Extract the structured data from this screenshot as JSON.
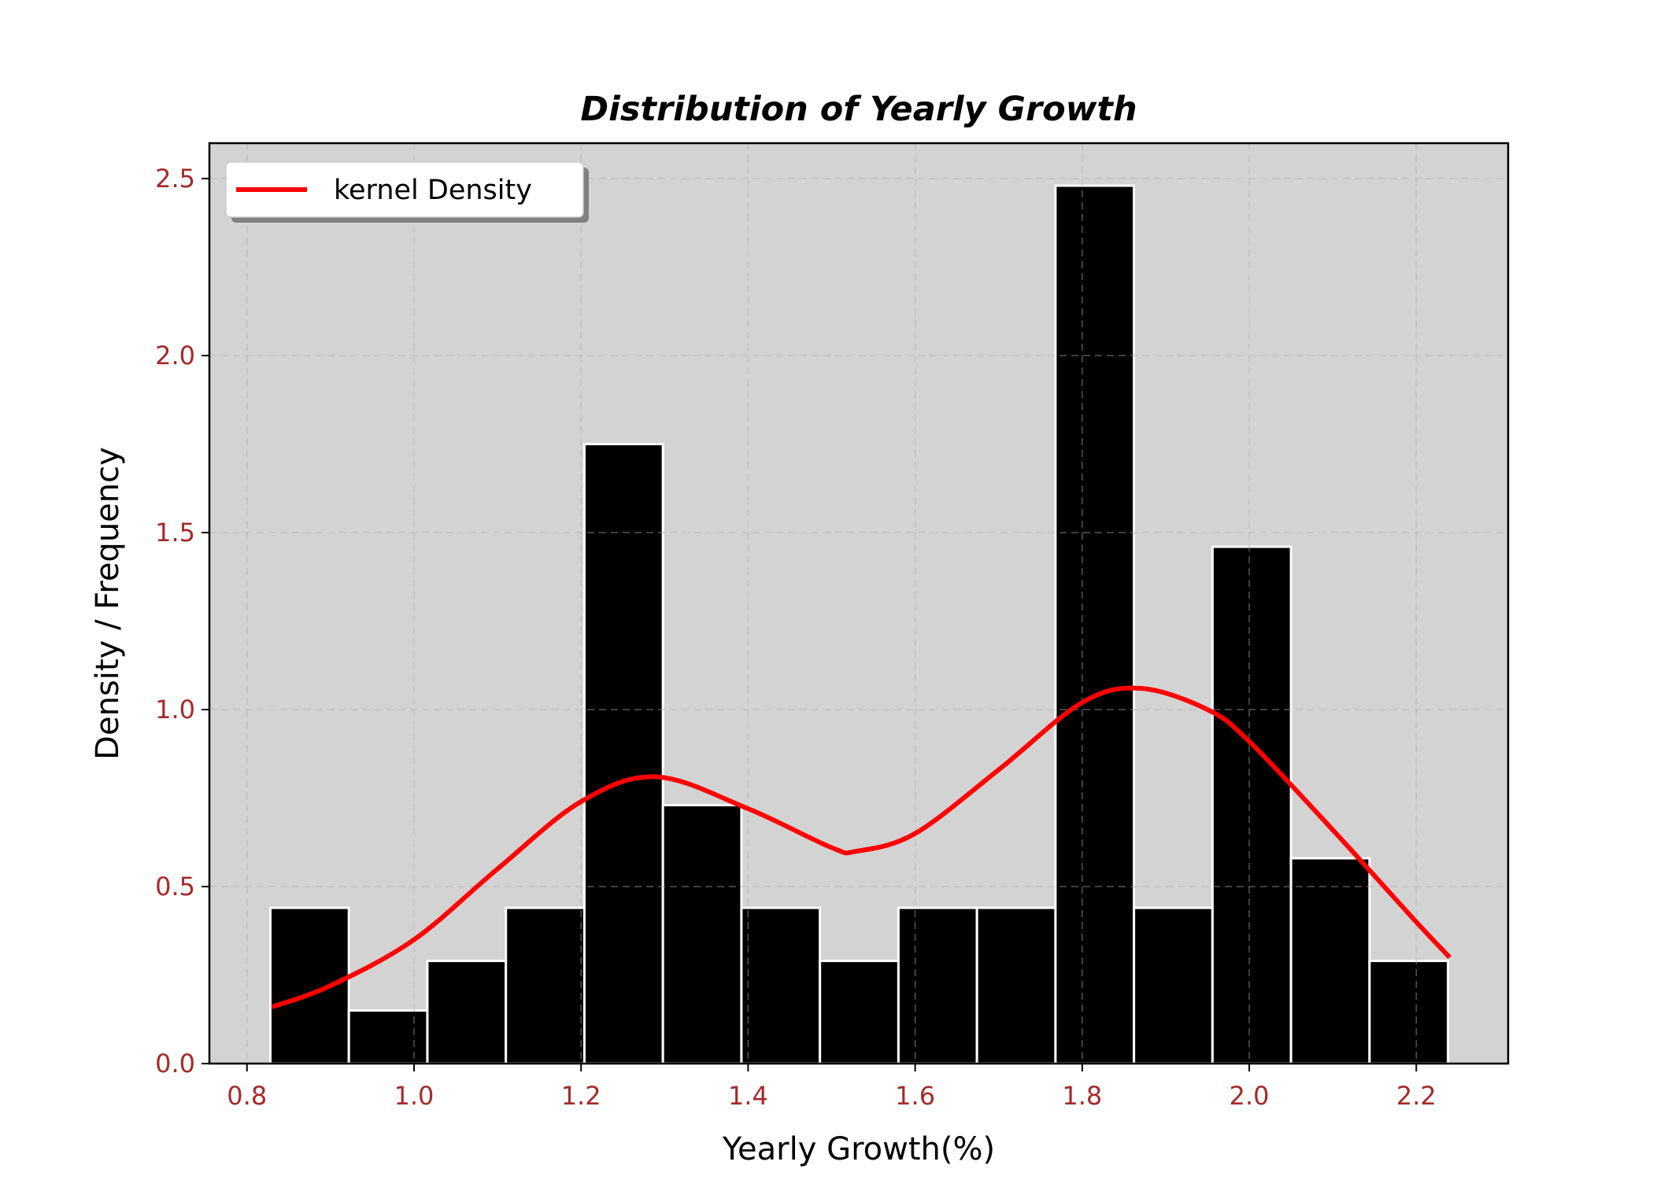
{
  "chart_data": {
    "type": "bar",
    "title": "Distribution of Yearly Growth",
    "xlabel": "Yearly Growth(%)",
    "ylabel": "Density / Frequency",
    "xlim": [
      0.755,
      2.31
    ],
    "ylim": [
      0,
      2.6
    ],
    "x_ticks": [
      0.8,
      1.0,
      1.2,
      1.4,
      1.6,
      1.8,
      2.0,
      2.2
    ],
    "x_tick_labels": [
      "0.8",
      "1.0",
      "1.2",
      "1.4",
      "1.6",
      "1.8",
      "2.0",
      "2.2"
    ],
    "y_ticks": [
      0.0,
      0.5,
      1.0,
      1.5,
      2.0,
      2.5
    ],
    "y_tick_labels": [
      "0.0",
      "0.5",
      "1.0",
      "1.5",
      "2.0",
      "2.5"
    ],
    "grid": true,
    "background_color": "#d3d3d3",
    "histogram": {
      "bin_edges": [
        0.828,
        0.922,
        1.016,
        1.11,
        1.204,
        1.298,
        1.392,
        1.486,
        1.58,
        1.674,
        1.768,
        1.862,
        1.956,
        2.05,
        2.144,
        2.238
      ],
      "values": [
        0.44,
        0.15,
        0.29,
        0.44,
        1.75,
        0.73,
        0.44,
        0.29,
        0.44,
        0.44,
        2.48,
        0.44,
        1.46,
        0.58,
        0.29
      ],
      "bar_color": "#000000",
      "edge_color": "#ffffff"
    },
    "series": [
      {
        "name": "kernel Density",
        "type": "line",
        "color": "#ff0000",
        "x": [
          0.83,
          0.9,
          1.0,
          1.1,
          1.2,
          1.29,
          1.4,
          1.5,
          1.53,
          1.6,
          1.7,
          1.8,
          1.87,
          1.95,
          2.0,
          2.1,
          2.2,
          2.24
        ],
        "y": [
          0.16,
          0.22,
          0.35,
          0.55,
          0.74,
          0.81,
          0.72,
          0.61,
          0.6,
          0.65,
          0.83,
          1.02,
          1.06,
          1.0,
          0.91,
          0.66,
          0.4,
          0.3
        ]
      }
    ],
    "legend": {
      "placement": "top-left",
      "entries": [
        "kernel Density"
      ]
    }
  }
}
